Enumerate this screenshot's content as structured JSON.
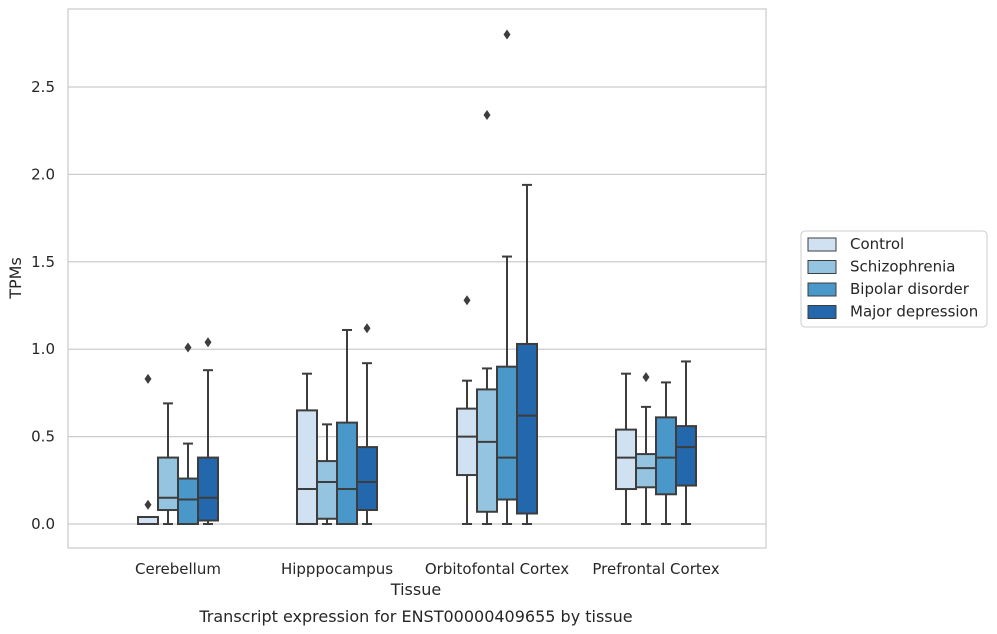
{
  "caption": "Transcript expression for ENST00000409655 by tissue",
  "chart_data": {
    "type": "boxplot",
    "xlabel": "Tissue",
    "ylabel": "TPMs",
    "ylim": [
      -0.14,
      2.9
    ],
    "yticks": [
      0.0,
      0.5,
      1.0,
      1.5,
      2.0,
      2.5
    ],
    "ytick_labels": [
      "0.0",
      "0.5",
      "1.0",
      "1.5",
      "2.0",
      "2.5"
    ],
    "grid": "horizontal",
    "legend_position": "right",
    "categories": [
      "Cerebellum",
      "Hipppocampus",
      "Orbitofontal Cortex",
      "Prefrontal Cortex"
    ],
    "series": [
      {
        "name": "Control",
        "color": "#d0e1f2",
        "boxes": [
          {
            "whisker_low": 0.0,
            "q1": 0.0,
            "median": 0.0,
            "q3": 0.04,
            "whisker_high": 0.04,
            "outliers": [
              0.11,
              0.83
            ]
          },
          {
            "whisker_low": 0.0,
            "q1": 0.0,
            "median": 0.2,
            "q3": 0.65,
            "whisker_high": 0.86,
            "outliers": []
          },
          {
            "whisker_low": 0.0,
            "q1": 0.28,
            "median": 0.5,
            "q3": 0.66,
            "whisker_high": 0.82,
            "outliers": [
              1.28
            ]
          },
          {
            "whisker_low": 0.0,
            "q1": 0.2,
            "median": 0.38,
            "q3": 0.54,
            "whisker_high": 0.86,
            "outliers": []
          }
        ]
      },
      {
        "name": "Schizophrenia",
        "color": "#94c4df",
        "boxes": [
          {
            "whisker_low": 0.0,
            "q1": 0.08,
            "median": 0.15,
            "q3": 0.38,
            "whisker_high": 0.69,
            "outliers": []
          },
          {
            "whisker_low": 0.0,
            "q1": 0.03,
            "median": 0.24,
            "q3": 0.36,
            "whisker_high": 0.57,
            "outliers": []
          },
          {
            "whisker_low": 0.0,
            "q1": 0.07,
            "median": 0.47,
            "q3": 0.77,
            "whisker_high": 0.89,
            "outliers": [
              2.34
            ]
          },
          {
            "whisker_low": 0.0,
            "q1": 0.21,
            "median": 0.32,
            "q3": 0.4,
            "whisker_high": 0.67,
            "outliers": [
              0.84
            ]
          }
        ]
      },
      {
        "name": "Bipolar disorder",
        "color": "#4a98c9",
        "boxes": [
          {
            "whisker_low": 0.0,
            "q1": 0.0,
            "median": 0.14,
            "q3": 0.26,
            "whisker_high": 0.46,
            "outliers": [
              1.01
            ]
          },
          {
            "whisker_low": 0.0,
            "q1": 0.0,
            "median": 0.2,
            "q3": 0.58,
            "whisker_high": 1.11,
            "outliers": []
          },
          {
            "whisker_low": 0.0,
            "q1": 0.14,
            "median": 0.38,
            "q3": 0.9,
            "whisker_high": 1.53,
            "outliers": [
              2.8
            ]
          },
          {
            "whisker_low": 0.0,
            "q1": 0.17,
            "median": 0.38,
            "q3": 0.61,
            "whisker_high": 0.81,
            "outliers": []
          }
        ]
      },
      {
        "name": "Major depression",
        "color": "#2367ac",
        "boxes": [
          {
            "whisker_low": 0.0,
            "q1": 0.02,
            "median": 0.15,
            "q3": 0.38,
            "whisker_high": 0.88,
            "outliers": [
              1.04
            ]
          },
          {
            "whisker_low": 0.0,
            "q1": 0.08,
            "median": 0.24,
            "q3": 0.44,
            "whisker_high": 0.92,
            "outliers": [
              1.12
            ]
          },
          {
            "whisker_low": 0.0,
            "q1": 0.06,
            "median": 0.62,
            "q3": 1.03,
            "whisker_high": 1.94,
            "outliers": []
          },
          {
            "whisker_low": 0.0,
            "q1": 0.22,
            "median": 0.44,
            "q3": 0.56,
            "whisker_high": 0.93,
            "outliers": []
          }
        ]
      }
    ]
  }
}
